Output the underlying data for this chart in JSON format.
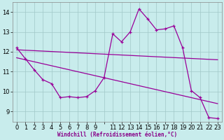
{
  "xlabel": "Windchill (Refroidissement éolien,°C)",
  "bg_color": "#c8ecec",
  "grid_color": "#a0c8c8",
  "line_color": "#990099",
  "ylim": [
    8.5,
    14.5
  ],
  "yticks": [
    9,
    10,
    11,
    12,
    13,
    14
  ],
  "xlim": [
    -0.5,
    23.5
  ],
  "x_ticks": [
    0,
    1,
    2,
    3,
    4,
    5,
    6,
    7,
    8,
    9,
    10,
    11,
    12,
    13,
    14,
    15,
    16,
    17,
    18,
    19,
    20,
    21,
    22,
    23
  ],
  "x_tick_labels": [
    "0",
    "1",
    "2",
    "3",
    "4",
    "5",
    "6",
    "7",
    "8",
    "9",
    "",
    "11",
    "12",
    "13",
    "14",
    "15",
    "16",
    "17",
    "18",
    "19",
    "20",
    "21",
    "22",
    "23"
  ],
  "line1_x": [
    0,
    1,
    2,
    3,
    4,
    5,
    6,
    7,
    8,
    9,
    10,
    11,
    12,
    13,
    14,
    15,
    16,
    17,
    18,
    19,
    20,
    21,
    22,
    23
  ],
  "line1_y": [
    12.2,
    11.65,
    11.1,
    10.6,
    10.4,
    9.7,
    9.75,
    9.7,
    9.75,
    10.05,
    10.7,
    12.9,
    12.5,
    13.0,
    14.15,
    13.65,
    13.1,
    13.15,
    13.3,
    12.2,
    10.05,
    9.7,
    8.7,
    8.65
  ],
  "trend1_x": [
    0,
    23
  ],
  "trend1_y": [
    12.1,
    11.6
  ],
  "trend2_x": [
    0,
    23
  ],
  "trend2_y": [
    11.7,
    9.4
  ]
}
